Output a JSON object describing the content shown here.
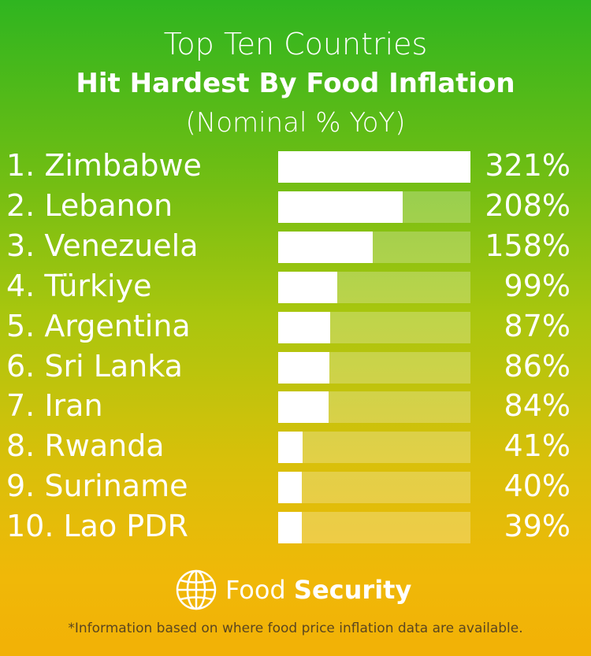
{
  "title_line1": "Top Ten Countries",
  "title_line2": "Hit Hardest By Food Inflation",
  "title_line3": "(Nominal % YoY)",
  "chart_data": {
    "type": "bar",
    "title": "Top Ten Countries Hit Hardest By Food Inflation (Nominal % YoY)",
    "categories": [
      "1. Zimbabwe",
      "2. Lebanon",
      "3. Venezuela",
      "4. Türkiye",
      "5. Argentina",
      "6. Sri Lanka",
      "7. Iran",
      "8. Rwanda",
      "9. Suriname",
      "10. Lao PDR"
    ],
    "values": [
      321,
      208,
      158,
      99,
      87,
      86,
      84,
      41,
      40,
      39
    ],
    "value_labels": [
      "321%",
      "208%",
      "158%",
      "99%",
      "87%",
      "86%",
      "84%",
      "41%",
      "40%",
      "39%"
    ],
    "xlim": [
      0,
      321
    ],
    "orientation": "horizontal",
    "colors": {
      "bar": "#ffffff",
      "track": "rgba(255,255,255,0.25)"
    }
  },
  "brand": {
    "light": "Food ",
    "bold": "Security",
    "icon": "globe-icon"
  },
  "footnote": "*Information based on where food price inflation data are available."
}
